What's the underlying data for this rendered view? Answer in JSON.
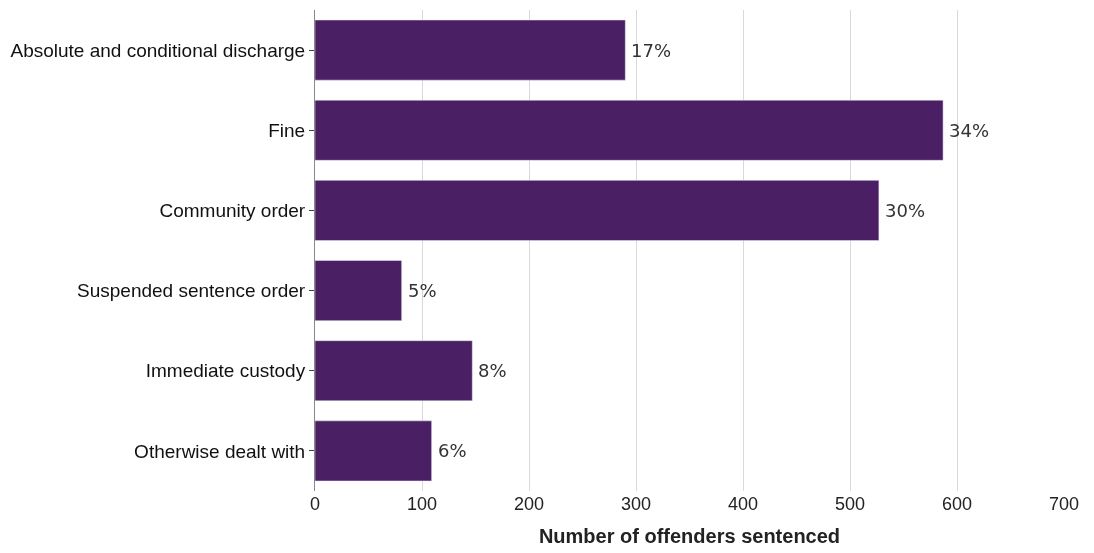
{
  "chart_data": {
    "type": "bar",
    "orientation": "horizontal",
    "xlabel": "Number of offenders sentenced",
    "categories": [
      "Absolute and conditional discharge",
      "Fine",
      "Community order",
      "Suspended sentence order",
      "Immediate custody",
      "Otherwise dealt with"
    ],
    "values": [
      290,
      587,
      527,
      81,
      147,
      109
    ],
    "annotations": [
      {
        "text": "17%",
        "x": 290,
        "y": "Absolute and conditional discharge"
      },
      {
        "text": "34%",
        "x": 587,
        "y": "Fine"
      },
      {
        "text": "30%",
        "x": 527,
        "y": "Community order"
      },
      {
        "text": "5%",
        "x": 81,
        "y": "Suspended sentence order"
      },
      {
        "text": "8%",
        "x": 147,
        "y": "Immediate custody"
      },
      {
        "text": "6%",
        "x": 109,
        "y": "Otherwise dealt with"
      }
    ],
    "color": "#4a1f63",
    "xlim": [
      0,
      700
    ],
    "xticks": [
      0,
      100,
      200,
      300,
      400,
      500,
      600,
      700
    ],
    "grid": "x"
  }
}
